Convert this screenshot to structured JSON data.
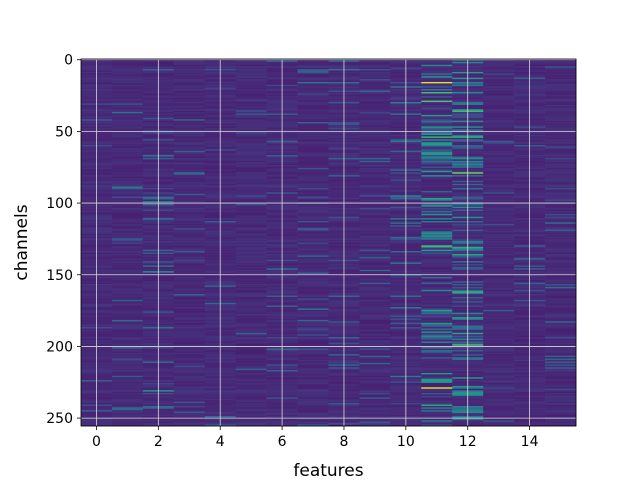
{
  "chart_data": {
    "type": "heatmap",
    "title": "",
    "xlabel": "features",
    "ylabel": "channels",
    "xlim": [
      -0.5,
      15.5
    ],
    "ylim": [
      255.5,
      -0.5
    ],
    "grid": true,
    "colormap": "viridis",
    "n_features": 16,
    "n_channels": 256,
    "x_ticks": [
      0,
      2,
      4,
      6,
      8,
      10,
      12,
      14
    ],
    "y_ticks": [
      0,
      50,
      100,
      150,
      200,
      250
    ],
    "value_range": [
      0,
      1
    ],
    "baseline_level": 0.12,
    "column_activity": [
      0.02,
      0.05,
      0.11,
      0.06,
      0.04,
      0.03,
      0.08,
      0.1,
      0.06,
      0.05,
      0.13,
      0.32,
      0.27,
      0.04,
      0.05,
      0.05
    ],
    "highlights": [
      {
        "feature": 11,
        "channel": 16,
        "value": 0.95
      },
      {
        "feature": 11,
        "channel": 229,
        "value": 0.95
      },
      {
        "feature": 11,
        "channel": 23,
        "value": 0.7
      },
      {
        "feature": 11,
        "channel": 29,
        "value": 0.72
      },
      {
        "feature": 11,
        "channel": 54,
        "value": 0.68
      },
      {
        "feature": 11,
        "channel": 97,
        "value": 0.6
      },
      {
        "feature": 11,
        "channel": 130,
        "value": 0.72
      },
      {
        "feature": 11,
        "channel": 241,
        "value": 0.62
      },
      {
        "feature": 12,
        "channel": 9,
        "value": 0.55
      },
      {
        "feature": 12,
        "channel": 36,
        "value": 0.68
      },
      {
        "feature": 12,
        "channel": 54,
        "value": 0.66
      },
      {
        "feature": 12,
        "channel": 79,
        "value": 0.8
      },
      {
        "feature": 12,
        "channel": 131,
        "value": 0.62
      },
      {
        "feature": 12,
        "channel": 136,
        "value": 0.58
      },
      {
        "feature": 12,
        "channel": 162,
        "value": 0.66
      },
      {
        "feature": 12,
        "channel": 191,
        "value": 0.6
      },
      {
        "feature": 12,
        "channel": 199,
        "value": 0.72
      },
      {
        "feature": 12,
        "channel": 222,
        "value": 0.55
      },
      {
        "feature": 2,
        "channel": 148,
        "value": 0.5
      },
      {
        "feature": 2,
        "channel": 231,
        "value": 0.52
      },
      {
        "feature": 10,
        "channel": 30,
        "value": 0.45
      },
      {
        "feature": 1,
        "channel": 89,
        "value": 0.42
      }
    ]
  }
}
